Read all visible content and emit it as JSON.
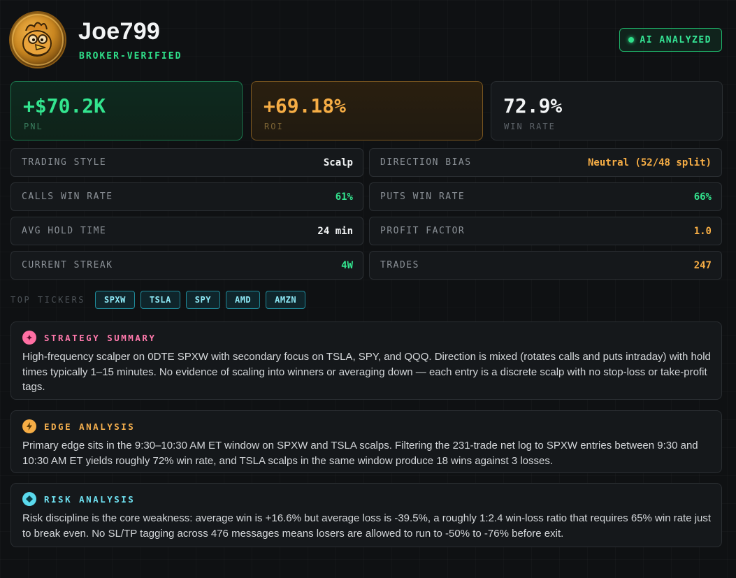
{
  "profile": {
    "username": "Joe799",
    "verified_label": "BROKER-VERIFIED",
    "ai_badge": "AI ANALYZED"
  },
  "stats": {
    "pnl": {
      "value": "+$70.2K",
      "label": "PNL"
    },
    "roi": {
      "value": "+69.18%",
      "label": "ROI"
    },
    "win_rate": {
      "value": "72.9%",
      "label": "WIN RATE"
    }
  },
  "metrics": [
    {
      "key": "TRADING STYLE",
      "value": "Scalp"
    },
    {
      "key": "DIRECTION BIAS",
      "value": "Neutral (52/48 split)"
    },
    {
      "key": "CALLS WIN RATE",
      "value": "61%"
    },
    {
      "key": "PUTS WIN RATE",
      "value": "66%"
    },
    {
      "key": "AVG HOLD TIME",
      "value": "24 min"
    },
    {
      "key": "PROFIT FACTOR",
      "value": "1.0"
    },
    {
      "key": "CURRENT STREAK",
      "value": "4W"
    },
    {
      "key": "TRADES",
      "value": "247"
    }
  ],
  "tickers": {
    "label": "TOP TICKERS",
    "items": [
      "SPXW",
      "TSLA",
      "SPY",
      "AMD",
      "AMZN"
    ]
  },
  "strategy": {
    "icon": "sparkle-icon",
    "title": "STRATEGY SUMMARY",
    "body": "High-frequency scalper on 0DTE SPXW with secondary focus on TSLA, SPY, and QQQ. Direction is mixed (rotates calls and puts intraday) with hold times typically 1–15 minutes. No evidence of scaling into winners or averaging down — each entry is a discrete scalp with no stop-loss or take-profit tags."
  },
  "edge": {
    "icon": "lightning-icon",
    "title": "EDGE ANALYSIS",
    "body": "Primary edge sits in the 9:30–10:30 AM ET window on SPXW and TSLA scalps. Filtering the 231-trade net log to SPXW entries between 9:30 and 10:30 AM ET yields roughly 72% win rate, and TSLA scalps in the same window produce 18 wins against 3 losses."
  },
  "risk": {
    "icon": "diamond-icon",
    "title": "RISK ANALYSIS",
    "body": "Risk discipline is the core weakness: average win is +16.6% but average loss is -39.5%, a roughly 1:2.4 win-loss ratio that requires 65% win rate just to break even. No SL/TP tagging across 476 messages means losers are allowed to run to -50% to -76% before exit."
  },
  "colors": {
    "green": "#33e58f",
    "orange": "#f6ad45",
    "pink": "#ff79ac",
    "cyan": "#6fe2f2"
  }
}
